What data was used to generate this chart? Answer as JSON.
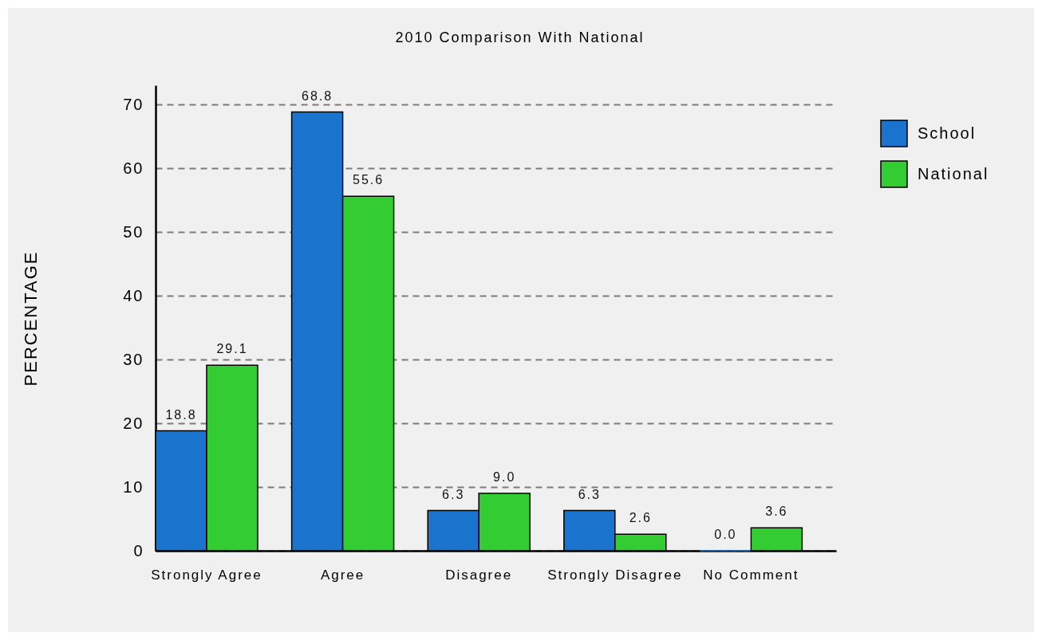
{
  "chart_data": {
    "type": "bar",
    "title": "2010 Comparison With National",
    "ylabel": "PERCENTAGE",
    "categories": [
      "Strongly Agree",
      "Agree",
      "Disagree",
      "Strongly Disagree",
      "No Comment"
    ],
    "series": [
      {
        "name": "School",
        "color": "#1a73cc",
        "values": [
          18.8,
          68.8,
          6.3,
          6.3,
          0.0
        ],
        "value_labels": [
          "18.8",
          "68.8",
          "6.3",
          "6.3",
          "0.0"
        ]
      },
      {
        "name": "National",
        "color": "#33cc33",
        "values": [
          29.1,
          55.6,
          9.0,
          2.6,
          3.6
        ],
        "value_labels": [
          "29.1",
          "55.6",
          "9.0",
          "2.6",
          "3.6"
        ]
      }
    ],
    "ylim": [
      0,
      73
    ],
    "yticks": [
      0,
      10,
      20,
      30,
      40,
      50,
      60,
      70
    ],
    "grid": "y",
    "legend": "right"
  }
}
